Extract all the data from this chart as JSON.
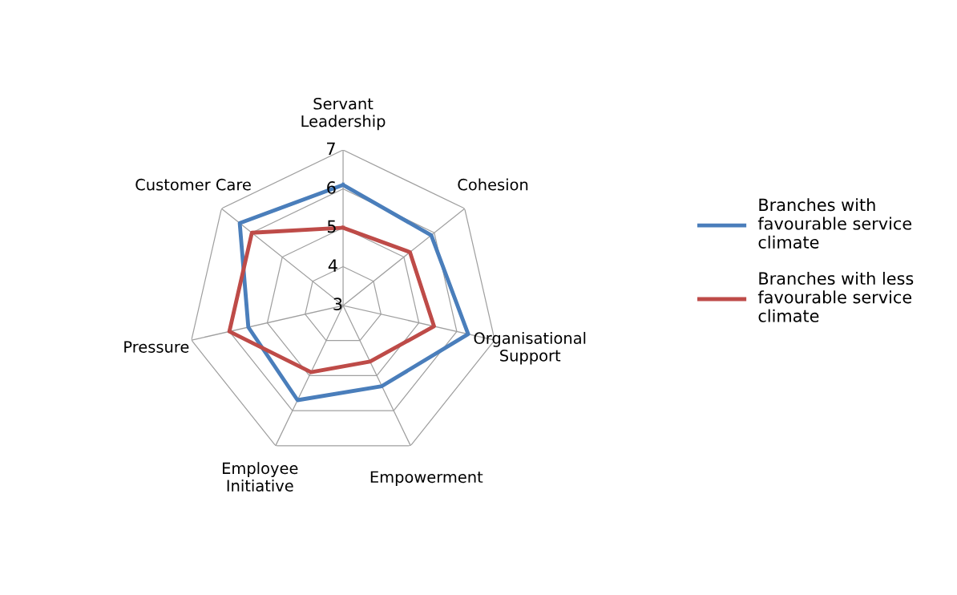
{
  "chart_data": {
    "type": "radar",
    "categories": [
      "Servant Leadership",
      "Cohesion",
      "Organisational Support",
      "Empowerment",
      "Employee Initiative",
      "Pressure",
      "Customer Care"
    ],
    "series": [
      {
        "name": "Branches with favourable service climate",
        "color": "#4a7ebb",
        "values": [
          6.1,
          5.9,
          6.3,
          5.3,
          5.7,
          5.5,
          6.4
        ]
      },
      {
        "name": "Branches with less favourable service climate",
        "color": "#be4b48",
        "values": [
          5.0,
          5.2,
          5.4,
          4.6,
          4.9,
          6.0,
          6.0
        ]
      }
    ],
    "ylim": [
      3,
      7
    ],
    "yticks": [
      3,
      4,
      5,
      6,
      7
    ],
    "grid": true,
    "legend": "right",
    "marker": "none",
    "line_style": "solid"
  }
}
